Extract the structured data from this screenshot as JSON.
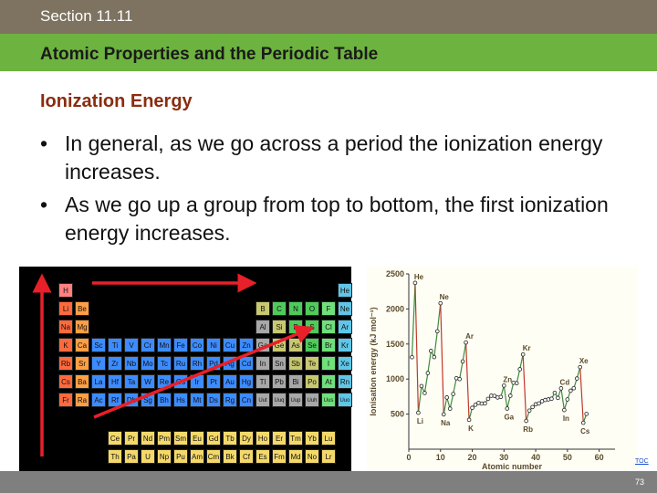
{
  "header": {
    "section": "Section 11.11",
    "title": "Atomic Properties and the Periodic Table"
  },
  "subtitle": "Ionization Energy",
  "bullets": [
    "In general, as we go across a period the ionization energy increases.",
    "As we go up a group from top to bottom, the first ionization energy increases."
  ],
  "bullet_symbol": "•",
  "toc_label": "TOC",
  "page_number": "73",
  "periodic_table": {
    "rows": [
      [
        "H",
        "",
        "",
        "",
        "",
        "",
        "",
        "",
        "",
        "",
        "",
        "",
        "",
        "",
        "",
        "",
        "",
        "He"
      ],
      [
        "Li",
        "Be",
        "",
        "",
        "",
        "",
        "",
        "",
        "",
        "",
        "",
        "",
        "B",
        "C",
        "N",
        "O",
        "F",
        "Ne"
      ],
      [
        "Na",
        "Mg",
        "",
        "",
        "",
        "",
        "",
        "",
        "",
        "",
        "",
        "",
        "Al",
        "Si",
        "P",
        "S",
        "Cl",
        "Ar"
      ],
      [
        "K",
        "Ca",
        "Sc",
        "Ti",
        "V",
        "Cr",
        "Mn",
        "Fe",
        "Co",
        "Ni",
        "Cu",
        "Zn",
        "Ga",
        "Ge",
        "As",
        "Se",
        "Br",
        "Kr"
      ],
      [
        "Rb",
        "Sr",
        "Y",
        "Zr",
        "Nb",
        "Mo",
        "Tc",
        "Ru",
        "Rh",
        "Pd",
        "Ag",
        "Cd",
        "In",
        "Sn",
        "Sb",
        "Te",
        "I",
        "Xe"
      ],
      [
        "Cs",
        "Ba",
        "La",
        "Hf",
        "Ta",
        "W",
        "Re",
        "Os",
        "Ir",
        "Pt",
        "Au",
        "Hg",
        "Tl",
        "Pb",
        "Bi",
        "Po",
        "At",
        "Rn"
      ],
      [
        "Fr",
        "Ra",
        "Ac",
        "Rf",
        "Db",
        "Sg",
        "Bh",
        "Hs",
        "Mt",
        "Ds",
        "Rg",
        "Cn",
        "Uut",
        "Uuq",
        "Uup",
        "Uuh",
        "Uus",
        "Uuo"
      ]
    ],
    "lanthanides": [
      "Ce",
      "Pr",
      "Nd",
      "Pm",
      "Sm",
      "Eu",
      "Gd",
      "Tb",
      "Dy",
      "Ho",
      "Er",
      "Tm",
      "Yb",
      "Lu"
    ],
    "actinides": [
      "Th",
      "Pa",
      "U",
      "Np",
      "Pu",
      "Am",
      "Cm",
      "Bk",
      "Cf",
      "Es",
      "Fm",
      "Md",
      "No",
      "Lr"
    ],
    "colors": {
      "alkali": "#ff6a3d",
      "alkaline": "#ff9f45",
      "transition": "#3d8cff",
      "post": "#a8a8a8",
      "metalloid": "#c8c870",
      "nonmetal": "#4ecb5a",
      "halogen": "#6fe07a",
      "noble": "#5fc6e8",
      "hydrogen": "#ff8080",
      "fblock": "#f4d96a",
      "arrow": "#e8202a"
    }
  },
  "chart_data": {
    "type": "line",
    "title": "",
    "xlabel": "Atomic number",
    "ylabel": "Ionisation energy (kJ mol⁻¹)",
    "xlim": [
      0,
      65
    ],
    "ylim": [
      0,
      2500
    ],
    "xticks": [
      0,
      10,
      20,
      30,
      40,
      50,
      60
    ],
    "yticks": [
      500,
      1000,
      1500,
      2000,
      2500
    ],
    "series": [
      {
        "x": [
          1,
          2,
          3,
          4,
          5,
          6,
          7,
          8,
          9,
          10,
          11,
          12,
          13,
          14,
          15,
          16,
          17,
          18,
          19,
          20,
          21,
          22,
          23,
          24,
          25,
          26,
          27,
          28,
          29,
          30,
          31,
          32,
          33,
          34,
          35,
          36,
          37,
          38,
          39,
          40,
          41,
          42,
          43,
          44,
          45,
          46,
          47,
          48,
          49,
          50,
          51,
          52,
          53,
          54,
          55,
          56
        ],
        "y": [
          1312,
          2372,
          520,
          900,
          801,
          1086,
          1402,
          1314,
          1681,
          2081,
          496,
          738,
          578,
          787,
          1012,
          1000,
          1251,
          1521,
          419,
          590,
          633,
          659,
          651,
          653,
          717,
          762,
          760,
          737,
          745,
          906,
          579,
          762,
          947,
          941,
          1140,
          1351,
          403,
          550,
          600,
          640,
          652,
          684,
          702,
          710,
          720,
          804,
          731,
          868,
          558,
          709,
          834,
          869,
          1008,
          1170,
          376,
          503
        ]
      }
    ],
    "annotations": [
      {
        "label": "He",
        "x": 2,
        "y": 2372
      },
      {
        "label": "Ne",
        "x": 10,
        "y": 2081
      },
      {
        "label": "Ar",
        "x": 18,
        "y": 1521
      },
      {
        "label": "Kr",
        "x": 36,
        "y": 1351
      },
      {
        "label": "Xe",
        "x": 54,
        "y": 1170
      },
      {
        "label": "Zn",
        "x": 30,
        "y": 906
      },
      {
        "label": "Cd",
        "x": 48,
        "y": 868
      },
      {
        "label": "Li",
        "x": 3,
        "y": 520
      },
      {
        "label": "Na",
        "x": 11,
        "y": 496
      },
      {
        "label": "K",
        "x": 19,
        "y": 419
      },
      {
        "label": "Rb",
        "x": 37,
        "y": 403
      },
      {
        "label": "Cs",
        "x": 55,
        "y": 376
      },
      {
        "label": "Ga",
        "x": 31,
        "y": 579
      },
      {
        "label": "In",
        "x": 49,
        "y": 558
      }
    ],
    "line_color": "#3f8a3f",
    "drop_color": "#c0392b"
  }
}
